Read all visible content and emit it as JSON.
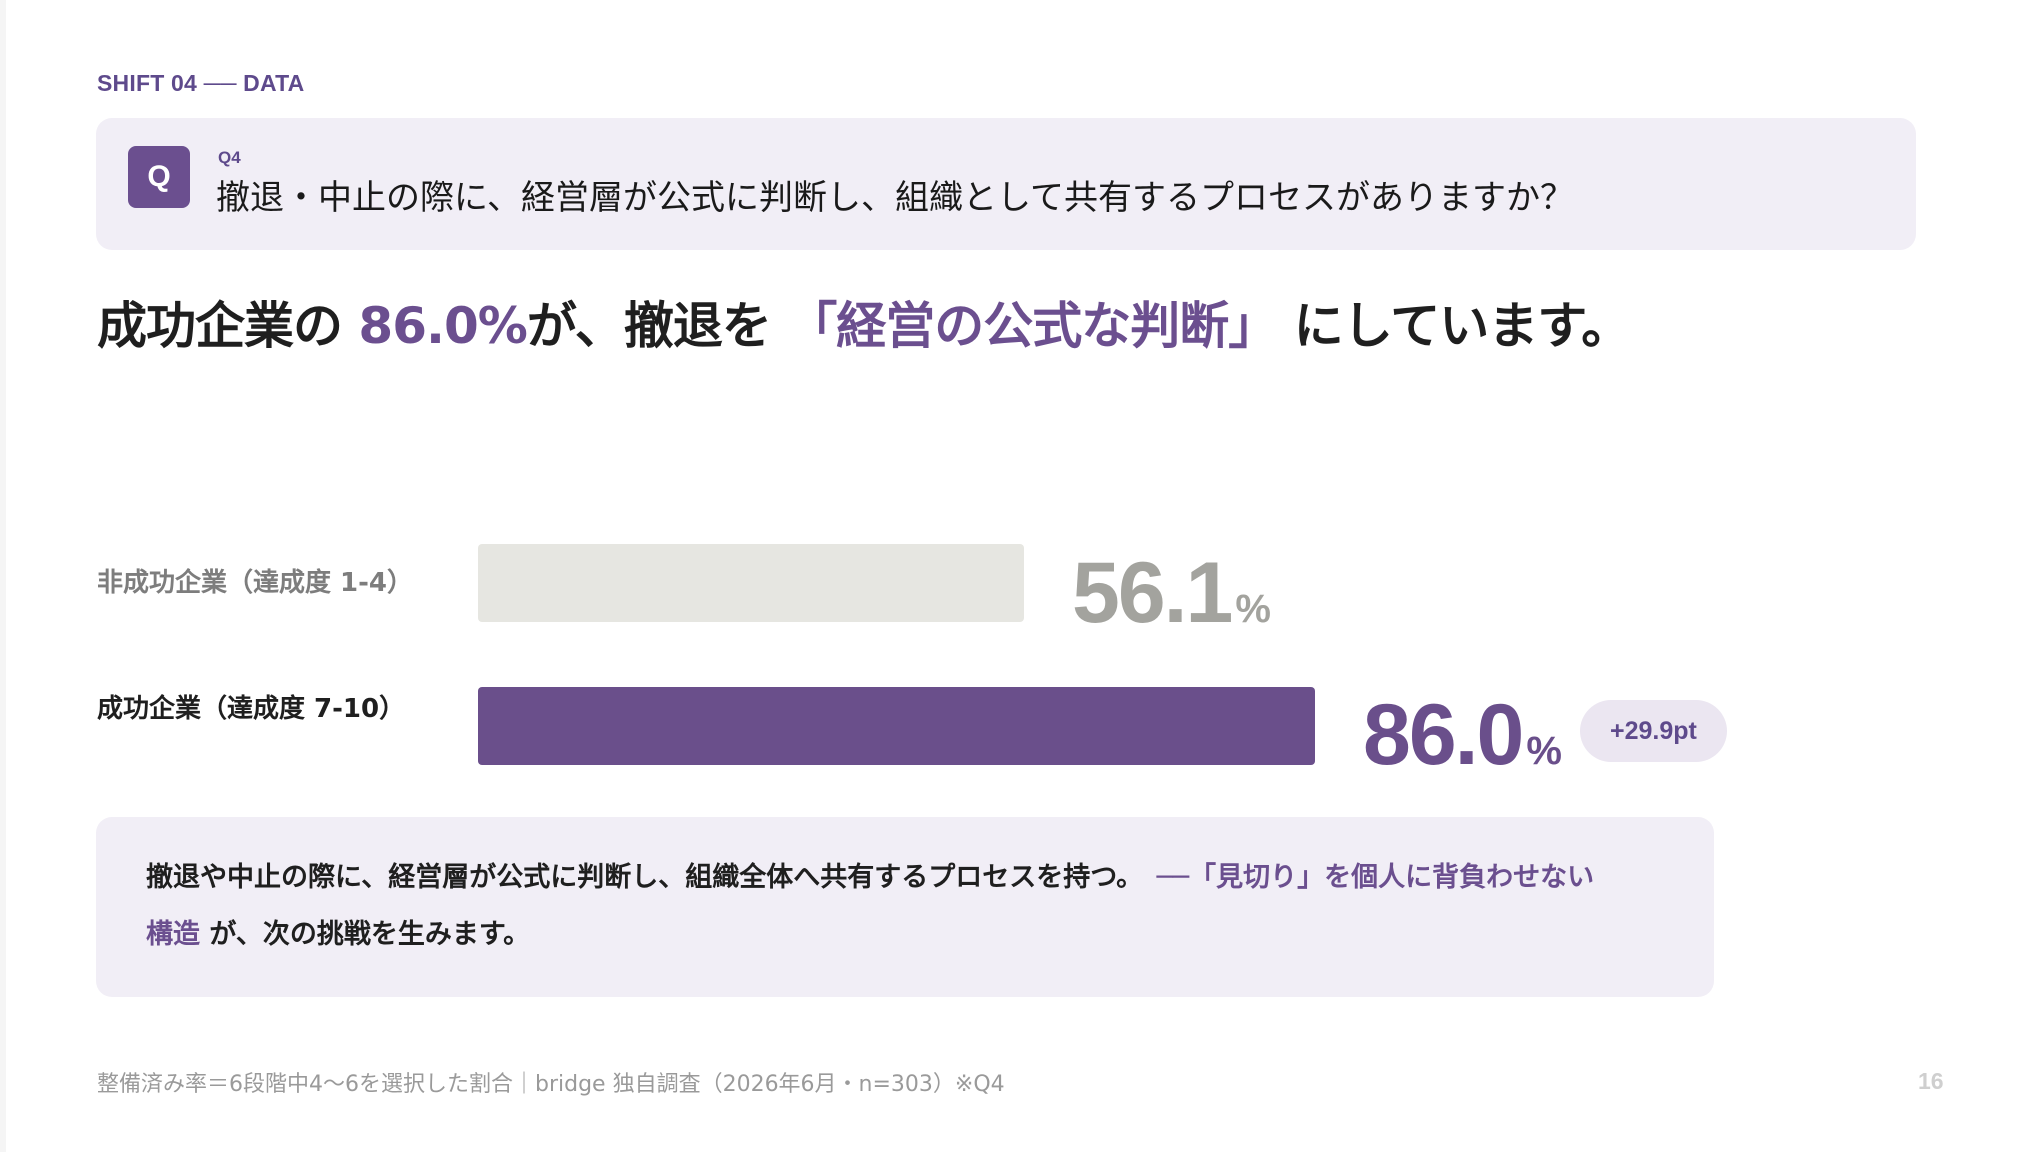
{
  "kicker": "SHIFT 04 ── DATA",
  "question": {
    "badge": "Q",
    "number": "Q4",
    "text": "撤退・中止の際に、経営層が公式に判断し、組織として共有するプロセスがありますか？"
  },
  "headline": {
    "part1": "成功企業の ",
    "highlight1": "86.0%",
    "part2": "が、撤退を ",
    "highlight2": "「経営の公式な判断」",
    "part3": " にしています。"
  },
  "chart_data": {
    "type": "bar",
    "orientation": "horizontal",
    "categories": [
      "非成功企業（達成度 1-4）",
      "成功企業（達成度 7-10）"
    ],
    "values": [
      56.1,
      86.0
    ],
    "value_labels": [
      "56.1",
      "86.0"
    ],
    "unit": "%",
    "xlim": [
      0,
      100
    ],
    "difference_label": "+29.9pt",
    "colors": {
      "muted_bar": "#e6e6e1",
      "muted_text": "#a3a39e",
      "accent": "#6a4f8b"
    }
  },
  "note": {
    "line1_text": "撤退や中止の際に、経営層が公式に判断し、組織全体へ共有するプロセスを持つ。　",
    "line1_highlight": "──「見切り」を個人に背負わせない",
    "line2_highlight": "構造",
    "line2_text": " が、次の挑戦を生みます。"
  },
  "footer": "整備済み率＝6段階中4〜6を選択した割合｜bridge 独自調査（2026年6月・n=303）※Q4",
  "page_number": "16"
}
